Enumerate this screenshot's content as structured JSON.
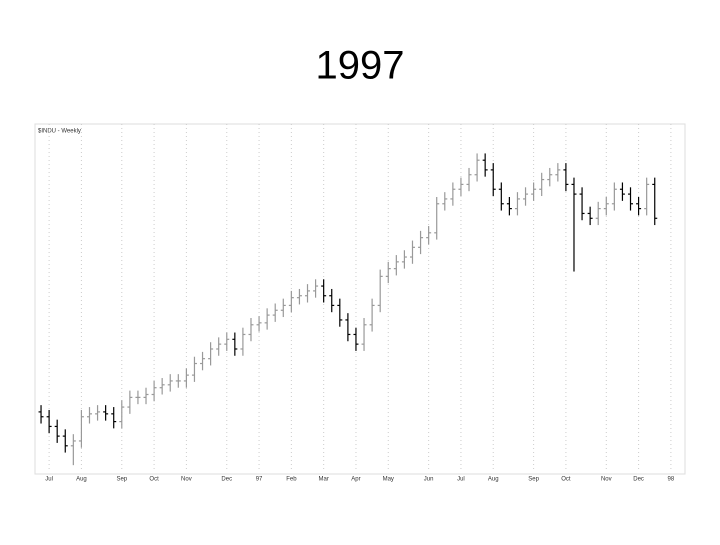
{
  "title": "1997",
  "chart_data": {
    "type": "ohlc",
    "subtitle": "$INDU - Weekly",
    "open": [
      5700,
      5650,
      5550,
      5450,
      5350,
      5400,
      5650,
      5680,
      5700,
      5680,
      5600,
      5750,
      5850,
      5850,
      5880,
      5950,
      5980,
      6020,
      6020,
      6080,
      6200,
      6250,
      6350,
      6400,
      6450,
      6350,
      6500,
      6600,
      6620,
      6700,
      6750,
      6800,
      6880,
      6900,
      6950,
      7000,
      6900,
      6800,
      6650,
      6500,
      6400,
      6600,
      6800,
      7100,
      7180,
      7250,
      7300,
      7400,
      7500,
      7550,
      7850,
      7900,
      8000,
      8050,
      8150,
      8300,
      8200,
      8000,
      7850,
      7800,
      7900,
      7950,
      8000,
      8100,
      8150,
      8200,
      8050,
      7950,
      7750,
      7700,
      7800,
      7850,
      8000,
      7950,
      7850,
      7800,
      8050
    ],
    "high": [
      5770,
      5720,
      5620,
      5520,
      5470,
      5720,
      5750,
      5770,
      5770,
      5750,
      5820,
      5920,
      5920,
      5950,
      6020,
      6050,
      6090,
      6090,
      6150,
      6270,
      6320,
      6420,
      6470,
      6520,
      6520,
      6570,
      6670,
      6690,
      6770,
      6820,
      6870,
      6950,
      6970,
      7020,
      7070,
      7070,
      6970,
      6870,
      6720,
      6570,
      6670,
      6870,
      7170,
      7250,
      7320,
      7370,
      7470,
      7570,
      7620,
      7920,
      7970,
      8070,
      8120,
      8220,
      8370,
      8370,
      8270,
      8070,
      7920,
      7970,
      8020,
      8070,
      8170,
      8220,
      8270,
      8270,
      8120,
      8020,
      7820,
      7870,
      7920,
      8070,
      8070,
      8020,
      7920,
      8120,
      8120
    ],
    "low": [
      5580,
      5480,
      5380,
      5280,
      5150,
      5330,
      5580,
      5610,
      5610,
      5530,
      5530,
      5680,
      5780,
      5780,
      5810,
      5880,
      5910,
      5950,
      5950,
      6010,
      6130,
      6180,
      6280,
      6330,
      6280,
      6280,
      6430,
      6530,
      6550,
      6630,
      6680,
      6730,
      6810,
      6830,
      6880,
      6830,
      6730,
      6580,
      6430,
      6330,
      6330,
      6530,
      6730,
      7030,
      7110,
      7180,
      7230,
      7330,
      7430,
      7480,
      7780,
      7830,
      7930,
      7980,
      8080,
      8130,
      7930,
      7780,
      7730,
      7730,
      7830,
      7880,
      7930,
      8030,
      8080,
      7980,
      7150,
      7680,
      7630,
      7630,
      7730,
      7780,
      7880,
      7780,
      7730,
      7730,
      7630
    ],
    "close": [
      5650,
      5550,
      5450,
      5350,
      5400,
      5650,
      5680,
      5700,
      5680,
      5600,
      5750,
      5850,
      5850,
      5880,
      5950,
      5980,
      6020,
      6020,
      6080,
      6200,
      6250,
      6350,
      6400,
      6450,
      6350,
      6500,
      6600,
      6620,
      6700,
      6750,
      6800,
      6880,
      6900,
      6950,
      7000,
      6900,
      6800,
      6650,
      6500,
      6400,
      6600,
      6800,
      7100,
      7180,
      7250,
      7300,
      7400,
      7500,
      7550,
      7850,
      7900,
      8000,
      8050,
      8150,
      8300,
      8200,
      8000,
      7850,
      7800,
      7900,
      7950,
      8000,
      8100,
      8150,
      8200,
      8050,
      7950,
      7750,
      7700,
      7800,
      7850,
      8000,
      7950,
      7850,
      7800,
      8050,
      7700
    ],
    "up_color": "#999999",
    "down_color": "#000000",
    "xlim": [
      -0.5,
      79.5
    ],
    "xticks": [
      {
        "value": 1,
        "label": "Jul"
      },
      {
        "value": 5,
        "label": "Aug"
      },
      {
        "value": 10,
        "label": "Sep"
      },
      {
        "value": 14,
        "label": "Oct"
      },
      {
        "value": 18,
        "label": "Nov"
      },
      {
        "value": 23,
        "label": "Dec"
      },
      {
        "value": 27,
        "label": "97"
      },
      {
        "value": 31,
        "label": "Feb"
      },
      {
        "value": 35,
        "label": "Mar"
      },
      {
        "value": 39,
        "label": "Apr"
      },
      {
        "value": 43,
        "label": "May"
      },
      {
        "value": 48,
        "label": "Jun"
      },
      {
        "value": 52,
        "label": "Jul"
      },
      {
        "value": 56,
        "label": "Aug"
      },
      {
        "value": 61,
        "label": "Sep"
      },
      {
        "value": 65,
        "label": "Oct"
      },
      {
        "value": 70,
        "label": "Nov"
      },
      {
        "value": 74,
        "label": "Dec"
      },
      {
        "value": 78,
        "label": "98"
      }
    ],
    "ylim": [
      5100,
      8550
    ],
    "grid": true
  }
}
